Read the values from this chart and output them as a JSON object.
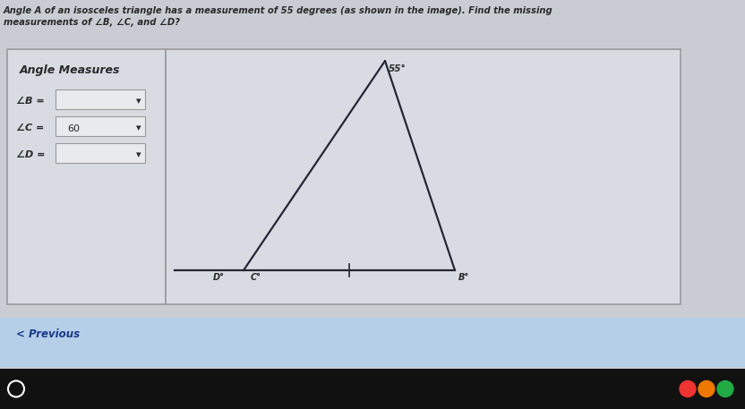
{
  "bg_color": "#c9cdd3",
  "panel_bg": "#d0d4da",
  "box_bg": "#d8dce2",
  "title_text": "Angle A of an isosceles triangle has a measurement of 55 degrees (as shown in the image). Find the missing",
  "title_text2": "measurements of ∠B, ∠C, and ∠D?",
  "left_panel_title": "Angle Measures",
  "angle_labels": [
    "∠B =",
    "∠C =",
    "∠D ="
  ],
  "angle_C_value": "60",
  "triangle_apex_label": "55°",
  "triangle_bottom_left_label1": "D°",
  "triangle_bottom_left_label2": "C°",
  "triangle_bottom_right_label": "B°",
  "previous_text": "< Previous",
  "inner_box_color": "#e8eaed",
  "border_color": "#999999",
  "text_color": "#2a2a2a",
  "triangle_color": "#252535",
  "bottom_bar_color": "#b5cfe8",
  "taskbar_color": "#111111",
  "outer_box_color": "#b0b4ba"
}
